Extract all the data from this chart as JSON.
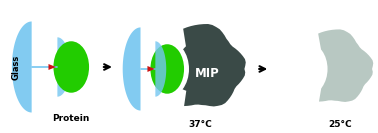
{
  "bg_color": "#ffffff",
  "glass_color": "#74c6f0",
  "protein_color": "#22cc00",
  "arrow_color": "#cc1111",
  "needle_color": "#74c6f0",
  "mip_color": "#3a4a47",
  "mip_light_color": "#b8c8c2",
  "label_glass": "Glass",
  "label_protein": "Protein",
  "label_mip": "MIP",
  "label_37": "37°C",
  "label_25": "25°C",
  "label_fontsize": 6.5,
  "glass_fontsize": 6.0
}
